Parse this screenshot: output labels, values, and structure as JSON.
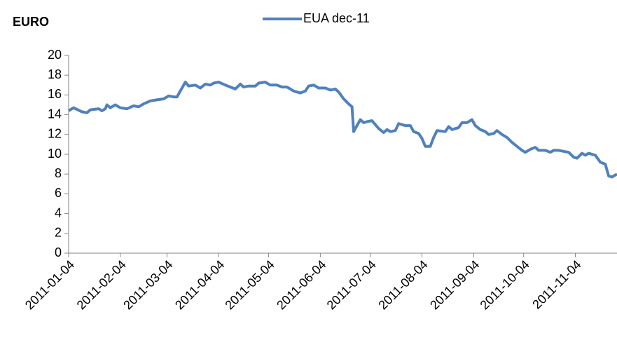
{
  "chart_data": {
    "type": "line",
    "y_label": "EURO",
    "x": [
      "2011-01-04",
      "2011-01-07",
      "2011-01-12",
      "2011-01-15",
      "2011-01-17",
      "2011-01-22",
      "2011-01-24",
      "2011-01-26",
      "2011-01-27",
      "2011-01-29",
      "2011-02-01",
      "2011-02-04",
      "2011-02-08",
      "2011-02-12",
      "2011-02-15",
      "2011-02-18",
      "2011-02-22",
      "2011-02-26",
      "2011-03-02",
      "2011-03-05",
      "2011-03-08",
      "2011-03-10",
      "2011-03-12",
      "2011-03-15",
      "2011-03-17",
      "2011-03-21",
      "2011-03-24",
      "2011-03-27",
      "2011-03-30",
      "2011-04-01",
      "2011-04-04",
      "2011-04-08",
      "2011-04-11",
      "2011-04-14",
      "2011-04-17",
      "2011-04-19",
      "2011-04-22",
      "2011-04-26",
      "2011-04-28",
      "2011-05-02",
      "2011-05-05",
      "2011-05-09",
      "2011-05-12",
      "2011-05-15",
      "2011-05-19",
      "2011-05-23",
      "2011-05-26",
      "2011-05-28",
      "2011-05-31",
      "2011-06-03",
      "2011-06-07",
      "2011-06-10",
      "2011-06-13",
      "2011-06-15",
      "2011-06-18",
      "2011-06-21",
      "2011-06-23",
      "2011-06-24",
      "2011-06-26",
      "2011-06-28",
      "2011-06-30",
      "2011-07-02",
      "2011-07-05",
      "2011-07-09",
      "2011-07-12",
      "2011-07-14",
      "2011-07-16",
      "2011-07-19",
      "2011-07-21",
      "2011-07-25",
      "2011-07-28",
      "2011-07-30",
      "2011-08-02",
      "2011-08-04",
      "2011-08-06",
      "2011-08-09",
      "2011-08-11",
      "2011-08-13",
      "2011-08-18",
      "2011-08-20",
      "2011-08-22",
      "2011-08-26",
      "2011-08-28",
      "2011-08-31",
      "2011-09-03",
      "2011-09-05",
      "2011-09-08",
      "2011-09-11",
      "2011-09-13",
      "2011-09-16",
      "2011-09-18",
      "2011-09-21",
      "2011-09-24",
      "2011-09-27",
      "2011-09-30",
      "2011-10-03",
      "2011-10-05",
      "2011-10-08",
      "2011-10-11",
      "2011-10-13",
      "2011-10-17",
      "2011-10-20",
      "2011-10-22",
      "2011-10-25",
      "2011-10-28",
      "2011-10-31",
      "2011-11-03",
      "2011-11-05",
      "2011-11-08",
      "2011-11-10",
      "2011-11-12",
      "2011-11-16",
      "2011-11-19",
      "2011-11-22",
      "2011-11-24",
      "2011-11-26",
      "2011-11-29"
    ],
    "series": [
      {
        "name": "EUA dec-11",
        "color": "#4f81bd",
        "values": [
          14.4,
          14.7,
          14.3,
          14.2,
          14.5,
          14.6,
          14.4,
          14.6,
          15.0,
          14.7,
          15.0,
          14.7,
          14.6,
          14.9,
          14.8,
          15.1,
          15.4,
          15.5,
          15.6,
          15.9,
          15.8,
          15.8,
          16.4,
          17.3,
          16.9,
          17.0,
          16.7,
          17.1,
          17.0,
          17.2,
          17.3,
          17.0,
          16.8,
          16.6,
          17.1,
          16.8,
          16.9,
          16.9,
          17.2,
          17.3,
          17.0,
          17.0,
          16.8,
          16.8,
          16.4,
          16.2,
          16.4,
          16.9,
          17.0,
          16.7,
          16.7,
          16.5,
          16.6,
          16.3,
          15.6,
          15.1,
          14.8,
          12.3,
          12.9,
          13.5,
          13.2,
          13.3,
          13.4,
          12.6,
          12.2,
          12.5,
          12.3,
          12.4,
          13.1,
          12.9,
          12.9,
          12.3,
          12.1,
          11.6,
          10.8,
          10.8,
          11.7,
          12.4,
          12.3,
          12.8,
          12.5,
          12.7,
          13.2,
          13.2,
          13.5,
          12.9,
          12.5,
          12.3,
          12.0,
          12.1,
          12.4,
          12.0,
          11.7,
          11.2,
          10.8,
          10.4,
          10.2,
          10.5,
          10.7,
          10.4,
          10.4,
          10.2,
          10.4,
          10.4,
          10.3,
          10.2,
          9.7,
          9.6,
          10.1,
          9.9,
          10.1,
          9.9,
          9.2,
          9.0,
          7.8,
          7.7,
          8.0
        ]
      }
    ],
    "xlim": [
      "2011-01-04",
      "2011-11-29"
    ],
    "xticks": [
      "2011-01-04",
      "2011-02-04",
      "2011-03-04",
      "2011-04-04",
      "2011-05-04",
      "2011-06-04",
      "2011-07-04",
      "2011-08-04",
      "2011-09-04",
      "2011-10-04",
      "2011-11-04"
    ],
    "ylim": [
      0,
      20
    ],
    "yticks": [
      0,
      2,
      4,
      6,
      8,
      10,
      12,
      14,
      16,
      18,
      20
    ],
    "grid": false,
    "legend": "top"
  }
}
